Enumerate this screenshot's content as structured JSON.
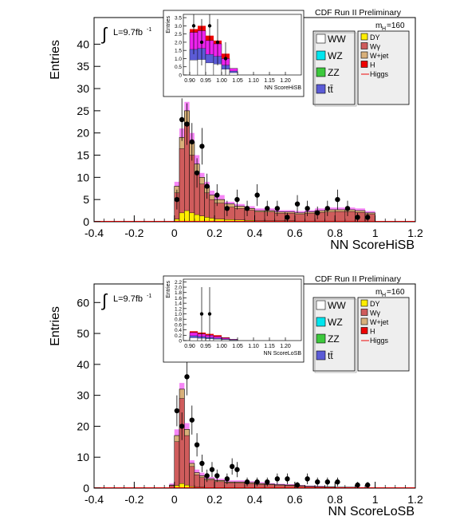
{
  "chart_data": [
    {
      "type": "bar",
      "xlabel": "NN ScoreHiSB",
      "ylabel": "Entries",
      "xlim": [
        -0.4,
        1.2
      ],
      "ylim": [
        0,
        46
      ],
      "xticks": [
        "-0.4",
        "-0.2",
        "0",
        "0.2",
        "0.4",
        "0.6",
        "0.8",
        "1",
        "1.2"
      ],
      "yticks": [
        "0",
        "5",
        "10",
        "15",
        "20",
        "25",
        "30",
        "35",
        "40"
      ],
      "lumi_prefix": "L=9.7fb",
      "lumi_sup": "-1",
      "header": "CDF Run II Preliminary",
      "mass_label_prefix": "m",
      "mass_label_sub": "H",
      "mass_label_suffix": "=160",
      "bin_edges": [
        0.0,
        0.025,
        0.05,
        0.075,
        0.1,
        0.125,
        0.15,
        0.175,
        0.2,
        0.25,
        0.3,
        0.35,
        0.4,
        0.45,
        0.5,
        0.55,
        0.6,
        0.65,
        0.7,
        0.75,
        0.8,
        0.85,
        0.9,
        0.95,
        1.0
      ],
      "stack_total": [
        8,
        19,
        25,
        18,
        13,
        10,
        8,
        6,
        5,
        4,
        3.5,
        3,
        2.5,
        2.5,
        2.2,
        2.2,
        2.0,
        2.2,
        2.5,
        2.7,
        2.7,
        2.7,
        2.5,
        2.0
      ],
      "wgamma": [
        6.5,
        16.5,
        22,
        15,
        11,
        8.5,
        6.5,
        5,
        4.2,
        3.3,
        3.0,
        2.6,
        2.2,
        2.2,
        1.9,
        1.9,
        1.7,
        1.9,
        2.1,
        2.2,
        2.3,
        2.3,
        2.1,
        1.7
      ],
      "dy": [
        0.6,
        2.0,
        2.5,
        2.0,
        1.6,
        1.3,
        1.0,
        0.8,
        0.6,
        0.5,
        0.4,
        0.3,
        0.2,
        0.2,
        0.2,
        0.2,
        0.15,
        0.15,
        0.15,
        0.15,
        0.15,
        0.15,
        0.1,
        0.1
      ],
      "higgs_band_top": [
        9,
        21,
        27,
        20,
        15,
        11,
        9,
        7,
        6,
        4.5,
        4.0,
        3.5,
        3.0,
        3.0,
        2.6,
        2.6,
        2.4,
        2.6,
        3.0,
        3.2,
        3.2,
        3.2,
        3.0,
        2.4
      ],
      "data_x": [
        0.0,
        0.025,
        0.05,
        0.075,
        0.1,
        0.125,
        0.15,
        0.2,
        0.25,
        0.3,
        0.35,
        0.4,
        0.45,
        0.5,
        0.55,
        0.6,
        0.65,
        0.7,
        0.75,
        0.8,
        0.85,
        0.9,
        0.95
      ],
      "data_y": [
        5,
        23,
        22,
        18,
        11,
        17,
        8,
        6,
        3,
        5,
        3,
        6,
        3,
        3,
        1,
        4,
        3,
        2,
        3,
        5,
        3,
        1,
        1
      ],
      "inset": {
        "xlabel": "NN ScoreHiSB",
        "ylabel": "Entries",
        "xlim": [
          0.88,
          1.25
        ],
        "ylim": [
          0,
          3.7
        ],
        "xticks": [
          "0.90",
          "0.95",
          "1.00",
          "1.05",
          "1.10",
          "1.15",
          "1.20"
        ],
        "yticks": [
          "0",
          "0.5",
          "1.0",
          "1.5",
          "2.0",
          "2.5",
          "3.0",
          "3.5"
        ],
        "bin_edges": [
          0.9,
          0.925,
          0.95,
          0.975,
          1.0,
          1.025,
          1.05
        ],
        "stack_total": [
          2.6,
          2.7,
          2.1,
          1.9,
          1.0,
          0.4
        ],
        "red_top": [
          2.8,
          3.0,
          2.4,
          2.1,
          1.3,
          0.0
        ],
        "data_x": [
          0.9,
          0.925,
          0.95,
          0.975,
          1.0
        ],
        "data_y": [
          3.0,
          2.0,
          3.0,
          2.0,
          1.0
        ]
      }
    },
    {
      "type": "bar",
      "xlabel": "NN ScoreLoSB",
      "ylabel": "Entries",
      "xlim": [
        -0.4,
        1.2
      ],
      "ylim": [
        0,
        66
      ],
      "xticks": [
        "-0.4",
        "-0.2",
        "0",
        "0.2",
        "0.4",
        "0.6",
        "0.8",
        "1",
        "1.2"
      ],
      "yticks": [
        "0",
        "10",
        "20",
        "30",
        "40",
        "50",
        "60"
      ],
      "lumi_prefix": "L=9.7fb",
      "lumi_sup": "-1",
      "header": "CDF Run II Preliminary",
      "mass_label_prefix": "m",
      "mass_label_sub": "H",
      "mass_label_suffix": "=160",
      "bin_edges": [
        -0.025,
        0.0,
        0.025,
        0.05,
        0.075,
        0.1,
        0.125,
        0.15,
        0.2,
        0.25,
        0.3,
        0.35,
        0.4,
        0.45,
        0.5,
        0.55,
        0.6,
        0.65,
        0.7,
        0.75,
        0.8,
        0.85,
        0.9,
        0.95
      ],
      "stack_total": [
        1,
        17,
        32,
        19,
        8,
        5,
        4,
        3,
        2.5,
        2,
        2,
        1.8,
        1.5,
        1.3,
        1.1,
        1.0,
        0.8,
        0.6,
        0.5,
        0.4,
        0.3,
        0.3,
        0.2
      ],
      "wgamma": [
        0.8,
        15,
        29,
        17,
        7,
        4.3,
        3.4,
        2.6,
        2.1,
        1.7,
        1.7,
        1.5,
        1.2,
        1.1,
        0.9,
        0.8,
        0.65,
        0.5,
        0.4,
        0.3,
        0.25,
        0.25,
        0.15
      ],
      "dy": [
        0.1,
        0.8,
        1.5,
        1.0,
        0.5,
        0.3,
        0.3,
        0.2,
        0.2,
        0.15,
        0.15,
        0.1,
        0.1,
        0.1,
        0.1,
        0.1,
        0.05,
        0.05,
        0.05,
        0.05,
        0.05,
        0.05,
        0.05
      ],
      "higgs_band_top": [
        1.5,
        19,
        34,
        21,
        9,
        6,
        5,
        3.6,
        3,
        2.5,
        2.5,
        2.2,
        1.9,
        1.6,
        1.4,
        1.3,
        1.0,
        0.8,
        0.7,
        0.5,
        0.4,
        0.4,
        0.3
      ],
      "data_x": [
        0.0,
        0.025,
        0.05,
        0.075,
        0.1,
        0.125,
        0.15,
        0.175,
        0.2,
        0.25,
        0.275,
        0.3,
        0.35,
        0.4,
        0.45,
        0.5,
        0.55,
        0.6,
        0.65,
        0.7,
        0.75,
        0.8,
        0.9,
        0.95
      ],
      "data_y": [
        25,
        20,
        36,
        22,
        14,
        8,
        4,
        6,
        4,
        3,
        7,
        6,
        2,
        2,
        2,
        3,
        3,
        1,
        3,
        2,
        2,
        2,
        1,
        1
      ],
      "inset": {
        "xlabel": "NN ScoreLoSB",
        "ylabel": "Entries",
        "xlim": [
          0.88,
          1.25
        ],
        "ylim": [
          0,
          2.3
        ],
        "xticks": [
          "0.90",
          "0.95",
          "1.00",
          "1.05",
          "1.10",
          "1.15",
          "1.20"
        ],
        "yticks": [
          "0",
          "0.2",
          "0.4",
          "0.6",
          "0.8",
          "1.0",
          "1.2",
          "1.4",
          "1.6",
          "1.8",
          "2.0",
          "2.2"
        ],
        "bin_edges": [
          0.9,
          0.925,
          0.95,
          0.975,
          1.0,
          1.025,
          1.05
        ],
        "stack_total": [
          0.3,
          0.25,
          0.2,
          0.15,
          0.1,
          0.05
        ],
        "red_top": [
          0.35,
          0.3,
          0.25,
          0.2,
          0.12,
          0.0
        ],
        "data_x": [
          0.925,
          0.95
        ],
        "data_y": [
          1.0,
          1.0
        ]
      }
    }
  ],
  "legend_items": [
    {
      "label": "WW",
      "color": "#ffffff"
    },
    {
      "label": "WZ",
      "color": "#00e5ee"
    },
    {
      "label": "ZZ",
      "color": "#3cc83c"
    },
    {
      "label": "tt̄",
      "color": "#5b5bd6"
    },
    {
      "label": "DY",
      "color": "#ffee00"
    },
    {
      "label": "Wγ",
      "color": "#cf5c5c"
    },
    {
      "label": "W+jet",
      "color": "#d8b07a"
    },
    {
      "label": "H",
      "color": "#ee0000"
    },
    {
      "label": "Higgs",
      "color": "#ee5555"
    }
  ],
  "colors": {
    "wgamma": "#cf5c5c",
    "dy": "#ffee00",
    "higgs_band": "#ee22ee",
    "inset_ww": "#ffffff",
    "inset_tt": "#5b5bd6",
    "inset_red": "#ee0000",
    "inset_pink": "#ee22ee",
    "axis_red": "#cc0000"
  }
}
